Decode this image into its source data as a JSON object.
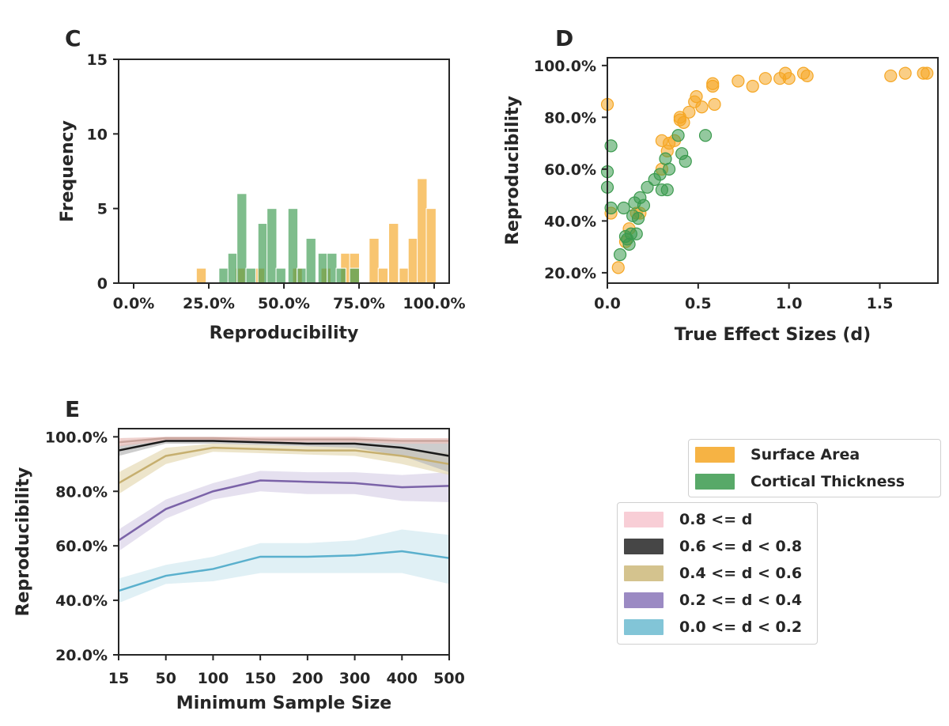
{
  "chart_data": [
    {
      "panel": "C",
      "type": "bar",
      "title": "",
      "xlabel": "Reproducibility",
      "ylabel": "Frequency",
      "xlim": [
        -0.05,
        1.05
      ],
      "ylim": [
        0,
        15
      ],
      "xticks": [
        "0.0%",
        "25.0%",
        "50.0%",
        "75.0%",
        "100.0%"
      ],
      "yticks": [
        "0",
        "5",
        "10",
        "15"
      ],
      "bin_width": 0.0325,
      "series": [
        {
          "name": "Surface Area",
          "color": "#f5a623",
          "bins": [
            [
              0.225,
              1
            ],
            [
              0.355,
              1
            ],
            [
              0.42,
              1
            ],
            [
              0.545,
              1
            ],
            [
              0.64,
              1
            ],
            [
              0.705,
              2
            ],
            [
              0.735,
              2
            ],
            [
              0.8,
              3
            ],
            [
              0.83,
              1
            ],
            [
              0.865,
              4
            ],
            [
              0.9,
              1
            ],
            [
              0.93,
              3
            ],
            [
              0.96,
              7
            ],
            [
              0.99,
              5
            ]
          ]
        },
        {
          "name": "Cortical Thickness",
          "color": "#3b9a4e",
          "bins": [
            [
              0.3,
              1
            ],
            [
              0.33,
              2
            ],
            [
              0.36,
              6
            ],
            [
              0.39,
              1
            ],
            [
              0.43,
              4
            ],
            [
              0.46,
              5
            ],
            [
              0.49,
              1
            ],
            [
              0.53,
              5
            ],
            [
              0.56,
              1
            ],
            [
              0.59,
              3
            ],
            [
              0.63,
              2
            ],
            [
              0.66,
              2
            ],
            [
              0.69,
              1
            ],
            [
              0.735,
              1
            ]
          ]
        }
      ]
    },
    {
      "panel": "D",
      "type": "scatter",
      "xlabel": "True Effect Sizes (d)",
      "ylabel": "Reproducibility",
      "xlim": [
        0,
        1.82
      ],
      "ylim": [
        0.16,
        1.03
      ],
      "xticks": [
        "0.0",
        "0.5",
        "1.0",
        "1.5"
      ],
      "yticks": [
        "20.0%",
        "40.0%",
        "60.0%",
        "80.0%",
        "100.0%"
      ],
      "series": [
        {
          "name": "Surface Area",
          "color": "#f5a623",
          "points": [
            [
              0,
              0.85
            ],
            [
              0.02,
              0.43
            ],
            [
              0.06,
              0.22
            ],
            [
              0.1,
              0.32
            ],
            [
              0.12,
              0.37
            ],
            [
              0.16,
              0.43
            ],
            [
              0.18,
              0.43
            ],
            [
              0.3,
              0.6
            ],
            [
              0.3,
              0.71
            ],
            [
              0.33,
              0.67
            ],
            [
              0.34,
              0.7
            ],
            [
              0.37,
              0.71
            ],
            [
              0.4,
              0.79
            ],
            [
              0.4,
              0.8
            ],
            [
              0.42,
              0.78
            ],
            [
              0.45,
              0.82
            ],
            [
              0.48,
              0.86
            ],
            [
              0.49,
              0.88
            ],
            [
              0.52,
              0.84
            ],
            [
              0.58,
              0.92
            ],
            [
              0.58,
              0.93
            ],
            [
              0.59,
              0.85
            ],
            [
              0.72,
              0.94
            ],
            [
              0.8,
              0.92
            ],
            [
              0.87,
              0.95
            ],
            [
              0.95,
              0.95
            ],
            [
              0.98,
              0.97
            ],
            [
              1.0,
              0.95
            ],
            [
              1.08,
              0.97
            ],
            [
              1.1,
              0.96
            ],
            [
              1.56,
              0.96
            ],
            [
              1.64,
              0.97
            ],
            [
              1.74,
              0.97
            ],
            [
              1.76,
              0.97
            ]
          ]
        },
        {
          "name": "Cortical Thickness",
          "color": "#3b9a4e",
          "points": [
            [
              0,
              0.59
            ],
            [
              0,
              0.53
            ],
            [
              0.02,
              0.69
            ],
            [
              0.02,
              0.45
            ],
            [
              0.07,
              0.27
            ],
            [
              0.09,
              0.45
            ],
            [
              0.1,
              0.34
            ],
            [
              0.11,
              0.33
            ],
            [
              0.12,
              0.31
            ],
            [
              0.13,
              0.35
            ],
            [
              0.14,
              0.42
            ],
            [
              0.15,
              0.47
            ],
            [
              0.16,
              0.35
            ],
            [
              0.17,
              0.41
            ],
            [
              0.18,
              0.49
            ],
            [
              0.2,
              0.46
            ],
            [
              0.22,
              0.53
            ],
            [
              0.26,
              0.56
            ],
            [
              0.29,
              0.58
            ],
            [
              0.3,
              0.52
            ],
            [
              0.33,
              0.52
            ],
            [
              0.32,
              0.64
            ],
            [
              0.34,
              0.6
            ],
            [
              0.39,
              0.73
            ],
            [
              0.41,
              0.66
            ],
            [
              0.43,
              0.63
            ],
            [
              0.54,
              0.73
            ]
          ]
        }
      ]
    },
    {
      "panel": "E",
      "type": "line",
      "xlabel": "Minimum Sample Size",
      "ylabel": "Reproducibility",
      "categories": [
        "15",
        "50",
        "100",
        "150",
        "200",
        "300",
        "400",
        "500"
      ],
      "ylim": [
        0.2,
        1.03
      ],
      "yticks": [
        "20.0%",
        "40.0%",
        "60.0%",
        "80.0%",
        "100.0%"
      ],
      "series": [
        {
          "name": "0.8 <= d",
          "color": "#c9a49c",
          "band": "#e9c2bd",
          "values": [
            0.98,
            0.995,
            0.995,
            0.99,
            0.99,
            0.99,
            0.985,
            0.985
          ],
          "lower": [
            0.965,
            0.985,
            0.985,
            0.98,
            0.98,
            0.98,
            0.975,
            0.975
          ],
          "upper": [
            0.995,
            1.0,
            1.0,
            1.0,
            1.0,
            1.0,
            0.995,
            0.995
          ]
        },
        {
          "name": "0.6 <= d < 0.8",
          "color": "#1a1a1a",
          "band": "#bcbcbc",
          "values": [
            0.95,
            0.985,
            0.985,
            0.98,
            0.975,
            0.975,
            0.96,
            0.93
          ],
          "lower": [
            0.93,
            0.975,
            0.975,
            0.97,
            0.965,
            0.96,
            0.93,
            0.87
          ],
          "upper": [
            0.97,
            0.995,
            0.995,
            0.99,
            0.985,
            0.985,
            0.98,
            0.98
          ]
        },
        {
          "name": "0.4 <= d < 0.6",
          "color": "#c6af6f",
          "band": "#e7dcb9",
          "values": [
            0.83,
            0.93,
            0.96,
            0.955,
            0.95,
            0.95,
            0.93,
            0.9
          ],
          "lower": [
            0.79,
            0.9,
            0.945,
            0.94,
            0.935,
            0.93,
            0.9,
            0.86
          ],
          "upper": [
            0.87,
            0.96,
            0.975,
            0.97,
            0.965,
            0.965,
            0.955,
            0.94
          ]
        },
        {
          "name": "0.2 <= d < 0.4",
          "color": "#7b63a8",
          "band": "#dcd6ea",
          "values": [
            0.62,
            0.735,
            0.8,
            0.84,
            0.835,
            0.83,
            0.815,
            0.82
          ],
          "lower": [
            0.58,
            0.7,
            0.77,
            0.8,
            0.79,
            0.79,
            0.765,
            0.76
          ],
          "upper": [
            0.66,
            0.77,
            0.83,
            0.875,
            0.87,
            0.87,
            0.86,
            0.87
          ]
        },
        {
          "name": "0.0 <= d < 0.2",
          "color": "#5ab0cd",
          "band": "#d6ebf2",
          "values": [
            0.435,
            0.49,
            0.515,
            0.56,
            0.56,
            0.565,
            0.58,
            0.555
          ],
          "lower": [
            0.39,
            0.46,
            0.47,
            0.5,
            0.5,
            0.5,
            0.5,
            0.46
          ],
          "upper": [
            0.48,
            0.53,
            0.56,
            0.61,
            0.61,
            0.62,
            0.66,
            0.64
          ]
        }
      ]
    }
  ],
  "panel_labels": {
    "c": "C",
    "d": "D",
    "e": "E"
  },
  "legend_material": [
    {
      "label": "Surface Area",
      "color": "#f5a623"
    },
    {
      "label": "Cortical Thickness",
      "color": "#3b9a4e"
    }
  ],
  "legend_effect": [
    {
      "label": "0.8 <= d",
      "color": "#f7c5cf"
    },
    {
      "label": "0.6 <= d < 0.8",
      "color": "#262626"
    },
    {
      "label": "0.4 <= d < 0.6",
      "color": "#cdb97a"
    },
    {
      "label": "0.2 <= d < 0.4",
      "color": "#8a76b8"
    },
    {
      "label": "0.0 <= d < 0.2",
      "color": "#6cbbd0"
    }
  ]
}
